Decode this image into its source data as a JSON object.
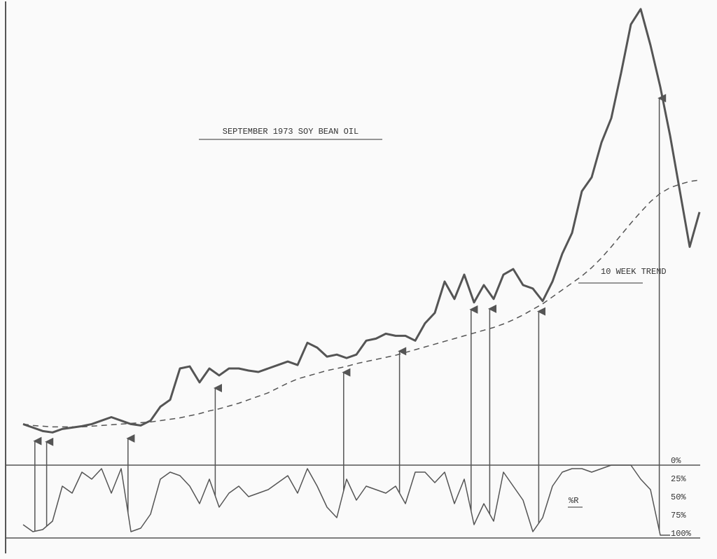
{
  "chart_data": [
    {
      "type": "line",
      "title": "SEPTEMBER 1973 SOY BEAN OIL",
      "ylim": [
        0,
        132
      ],
      "series": [
        {
          "color": "#555",
          "values": [
            11,
            10,
            9,
            8.6,
            9.6,
            10,
            10.4,
            11,
            12,
            13,
            12,
            11,
            10.6,
            12,
            16,
            18,
            27,
            27.6,
            23,
            27,
            25,
            27,
            27,
            26.4,
            26,
            27,
            28,
            29,
            28,
            34.4,
            33,
            30.4,
            31,
            30,
            31,
            35,
            35.6,
            37,
            36.4,
            36.4,
            35,
            40,
            43,
            52,
            47,
            54,
            46,
            51,
            47,
            54,
            55.6,
            51,
            50,
            46.4,
            52,
            60,
            66,
            78,
            82,
            92,
            99,
            112,
            126,
            130.4,
            120,
            108,
            94,
            78,
            62,
            72
          ]
        },
        {
          "name": "10 WEEK TREND",
          "color": "#555",
          "dashed": true,
          "values": [
            11,
            10.6,
            10.4,
            10.2,
            10.2,
            10.2,
            10.2,
            10.4,
            10.6,
            10.8,
            11,
            11.2,
            11.4,
            11.6,
            12,
            12.4,
            12.8,
            13.4,
            14,
            14.8,
            15.4,
            16.2,
            17,
            18,
            19,
            20,
            21.4,
            22.8,
            24,
            24.8,
            25.6,
            26.4,
            27,
            27.6,
            28.4,
            29,
            29.6,
            30.2,
            30.8,
            31.6,
            32.4,
            33.2,
            34,
            34.8,
            35.6,
            36.4,
            37.2,
            38,
            38.8,
            39.8,
            41,
            42.4,
            44,
            45.6,
            47.6,
            49.6,
            51.6,
            53.6,
            56,
            58.8,
            62,
            65.4,
            68.8,
            72,
            75,
            77.4,
            79,
            80,
            80.8,
            81.2
          ]
        }
      ],
      "arrows": [
        1.2,
        2.4,
        10.7,
        19.6,
        32.7,
        38.4,
        45.7,
        47.6,
        52.6,
        64.9
      ]
    },
    {
      "type": "line",
      "ylim": [
        0,
        100
      ],
      "inverted": true,
      "yticks": [
        {
          "value": 0,
          "label": "0%"
        },
        {
          "value": 25,
          "label": "25%"
        },
        {
          "value": 50,
          "label": "50%"
        },
        {
          "value": 75,
          "label": "75%"
        },
        {
          "value": 100,
          "label": "100%"
        }
      ],
      "series": [
        {
          "name": "%R",
          "color": "#555",
          "values": [
            85,
            95,
            92,
            80,
            30,
            40,
            10,
            20,
            5,
            40,
            5,
            95,
            90,
            70,
            20,
            10,
            15,
            30,
            55,
            20,
            60,
            40,
            30,
            45,
            40,
            35,
            25,
            15,
            40,
            5,
            30,
            60,
            75,
            20,
            50,
            30,
            35,
            40,
            30,
            55,
            10,
            10,
            25,
            10,
            55,
            20,
            85,
            55,
            80,
            10,
            30,
            50,
            95,
            75,
            30,
            10,
            5,
            5,
            10,
            5,
            0,
            0,
            0,
            20,
            35,
            100,
            100,
            null,
            null,
            null
          ]
        }
      ]
    }
  ]
}
